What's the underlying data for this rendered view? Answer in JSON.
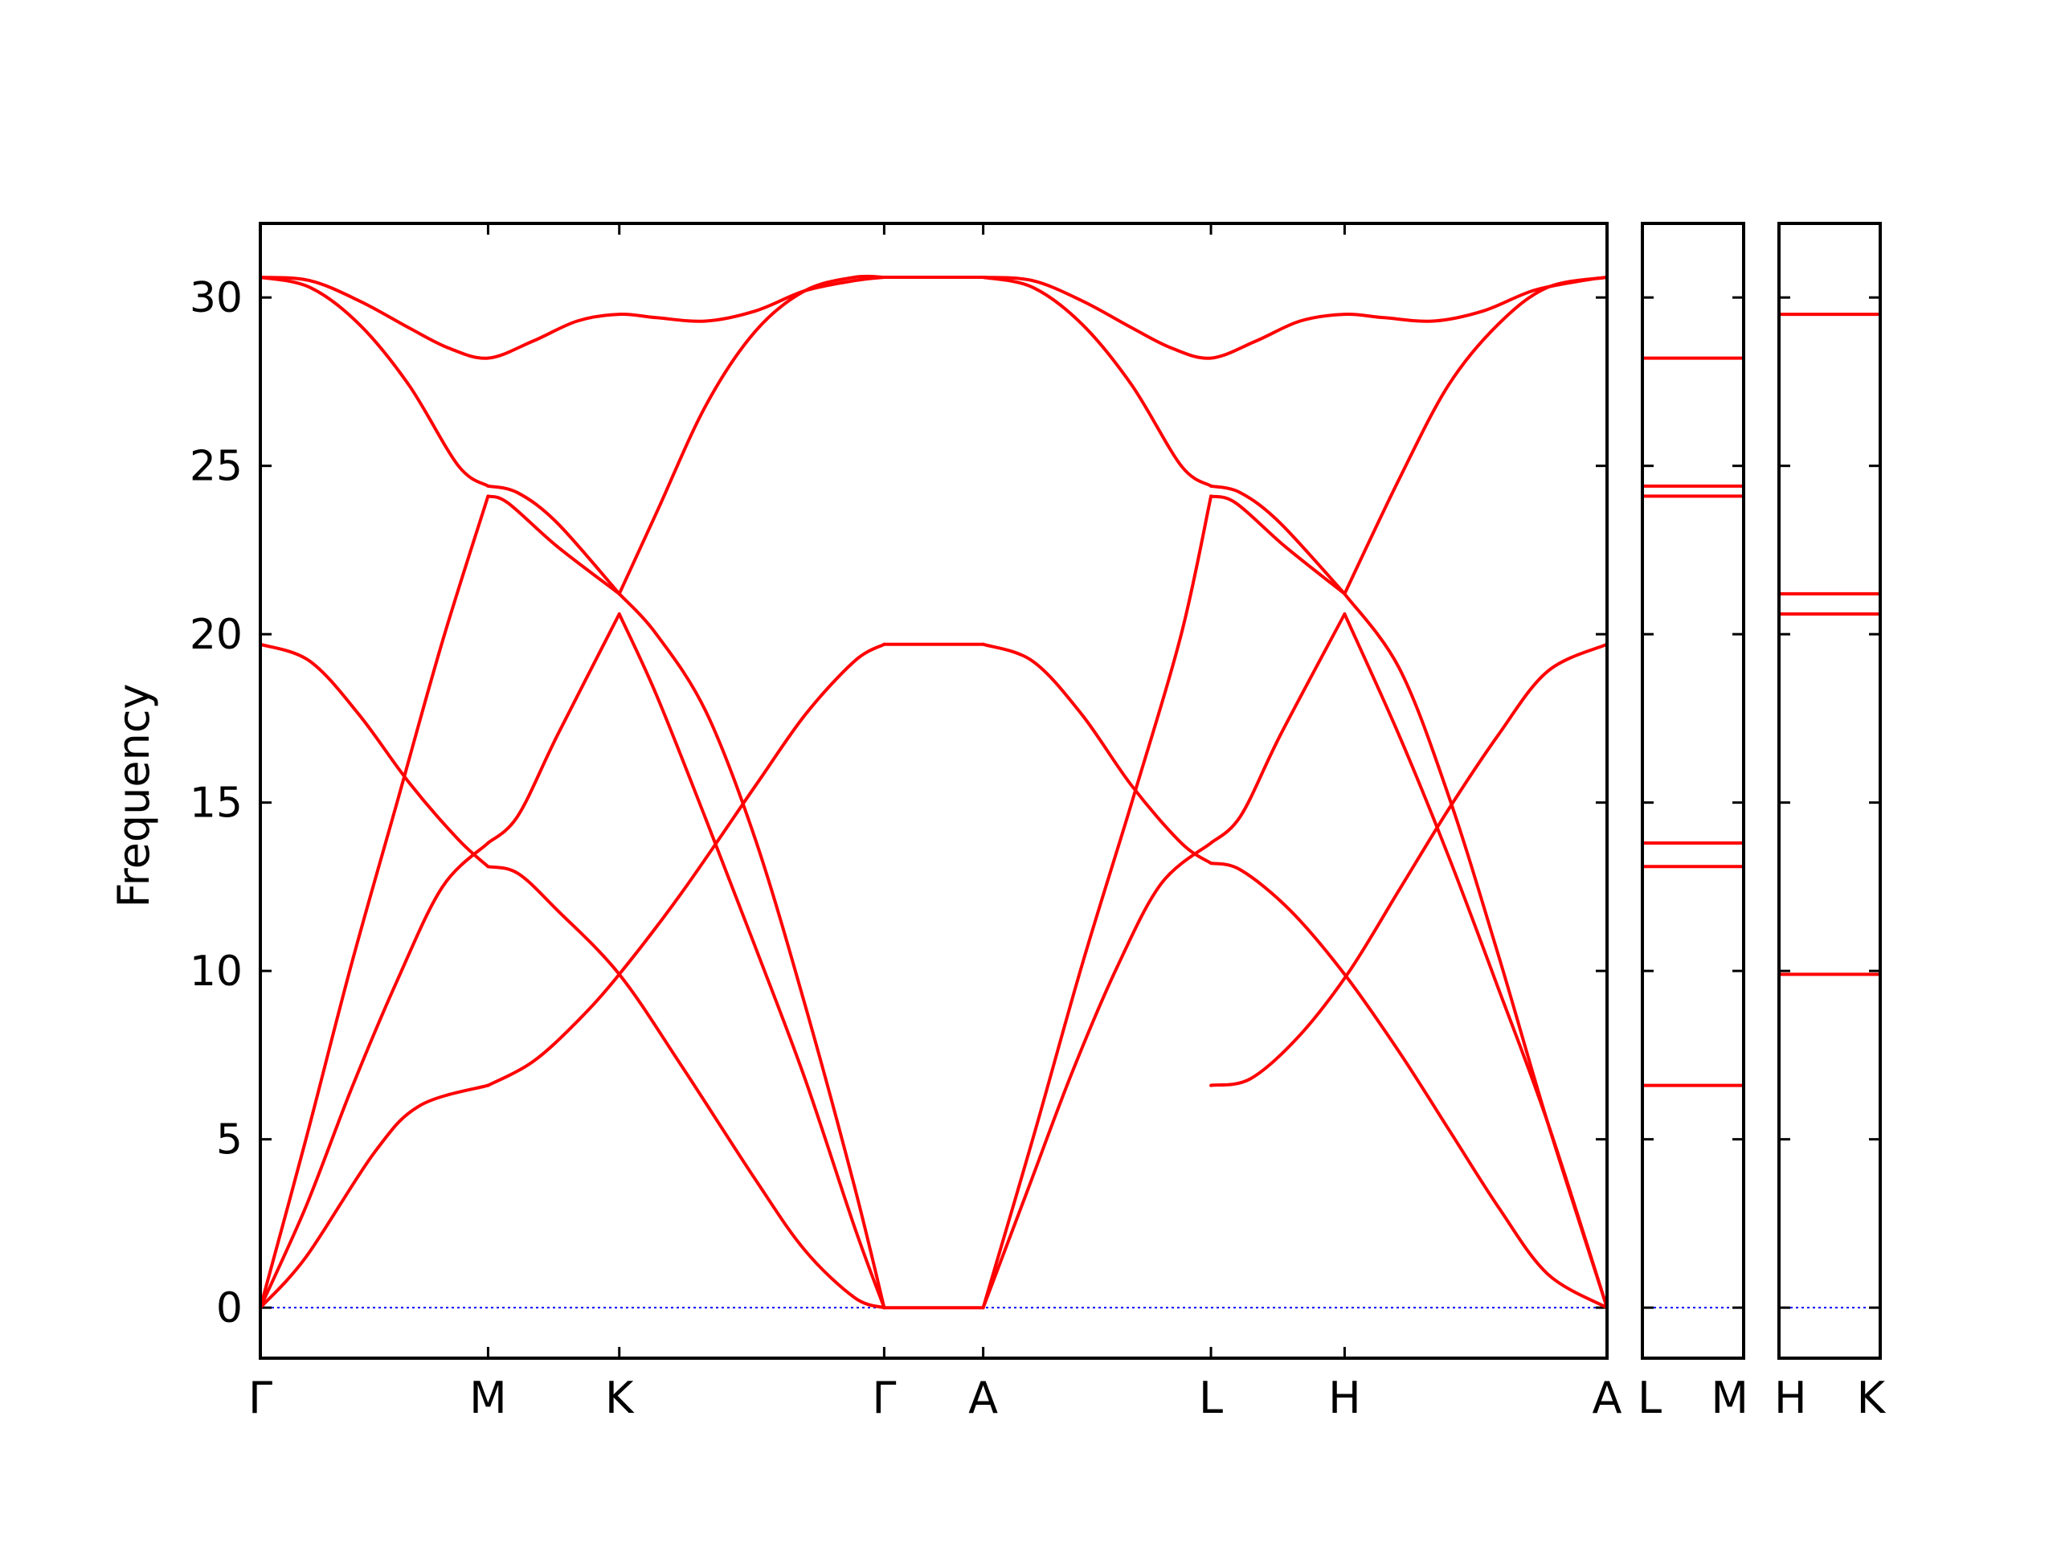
{
  "chart_data": {
    "type": "line",
    "ylabel": "Frequency",
    "ylim": [
      -1.5,
      32.2
    ],
    "yticks": [
      0,
      5,
      10,
      15,
      20,
      25,
      30
    ],
    "band_color": "#ff0000",
    "zero_line_color": "#0000ff",
    "panels": [
      {
        "id": "main",
        "xlim": [
          0,
          2.72
        ],
        "path_labels": [
          {
            "x": 0.0,
            "label": "Γ"
          },
          {
            "x": 0.46,
            "label": "M"
          },
          {
            "x": 0.725,
            "label": "K"
          },
          {
            "x": 1.26,
            "label": "Γ"
          },
          {
            "x": 1.46,
            "label": "A"
          },
          {
            "x": 1.92,
            "label": "L"
          },
          {
            "x": 2.19,
            "label": "H"
          },
          {
            "x": 2.72,
            "label": "A"
          }
        ],
        "bands": [
          {
            "x": [
              0,
              0.092,
              0.23,
              0.322,
              0.46
            ],
            "y": [
              0,
              1.5,
              4.6,
              6.0,
              6.6
            ]
          },
          {
            "x": [
              0.46,
              0.55,
              0.64,
              0.725,
              0.85,
              1.0,
              1.1,
              1.2,
              1.26
            ],
            "y": [
              6.6,
              7.3,
              8.5,
              9.9,
              12.3,
              15.5,
              17.6,
              19.2,
              19.7
            ]
          },
          {
            "x": [
              1.26,
              1.34,
              1.42,
              1.46
            ],
            "y": [
              19.7,
              19.7,
              19.7,
              19.7
            ]
          },
          {
            "x": [
              1.46,
              1.56,
              1.66,
              1.76,
              1.86,
              1.92
            ],
            "y": [
              19.7,
              19.2,
              17.6,
              15.5,
              13.8,
              13.2
            ]
          },
          {
            "x": [
              1.92,
              1.98,
              2.08,
              2.19,
              2.3,
              2.4,
              2.5,
              2.6,
              2.72
            ],
            "y": [
              13.2,
              13.0,
              11.8,
              9.9,
              7.6,
              5.3,
              3.0,
              1.0,
              0
            ]
          },
          {
            "x": [
              0,
              0.092,
              0.184,
              0.276,
              0.368,
              0.46
            ],
            "y": [
              0,
              3.0,
              6.5,
              9.7,
              12.5,
              13.8
            ]
          },
          {
            "x": [
              0.46,
              0.52,
              0.6,
              0.725
            ],
            "y": [
              13.8,
              14.6,
              17.0,
              20.6
            ]
          },
          {
            "x": [
              0.725,
              0.8,
              0.9,
              1.0,
              1.1,
              1.2,
              1.26
            ],
            "y": [
              20.6,
              18.2,
              14.5,
              10.7,
              6.8,
              2.4,
              0
            ]
          },
          {
            "x": [
              1.26,
              1.36,
              1.46
            ],
            "y": [
              0,
              0,
              0
            ]
          },
          {
            "x": [
              1.46,
              1.55,
              1.64,
              1.73,
              1.82,
              1.92
            ],
            "y": [
              0,
              3.5,
              7.0,
              10.1,
              12.6,
              13.8
            ]
          },
          {
            "x": [
              1.92,
              1.98,
              2.06,
              2.19
            ],
            "y": [
              13.8,
              14.6,
              17.0,
              20.6
            ]
          },
          {
            "x": [
              2.19,
              2.3,
              2.4,
              2.5,
              2.6,
              2.72
            ],
            "y": [
              20.6,
              17.0,
              13.4,
              9.5,
              5.5,
              0
            ]
          },
          {
            "x": [
              0,
              0.1,
              0.2,
              0.3,
              0.4,
              0.46
            ],
            "y": [
              19.7,
              19.2,
              17.6,
              15.6,
              13.9,
              13.1
            ]
          },
          {
            "x": [
              0.46,
              0.52,
              0.6,
              0.725,
              0.85,
              1.0,
              1.1,
              1.2,
              1.26
            ],
            "y": [
              13.1,
              12.9,
              11.8,
              9.9,
              7.2,
              3.8,
              1.7,
              0.3,
              0
            ]
          },
          {
            "x": [
              1.92,
              2.0,
              2.1,
              2.2,
              2.3,
              2.4,
              2.5,
              2.6,
              2.72
            ],
            "y": [
              6.6,
              6.8,
              8.1,
              10.0,
              12.4,
              14.8,
              17.0,
              18.9,
              19.7
            ]
          },
          {
            "x": [
              0,
              0.092,
              0.184,
              0.276,
              0.368,
              0.46
            ],
            "y": [
              0,
              5.0,
              10.2,
              15.0,
              19.8,
              24.1
            ]
          },
          {
            "x": [
              0.46,
              0.5,
              0.6,
              0.725
            ],
            "y": [
              24.1,
              23.9,
              22.6,
              21.2
            ]
          },
          {
            "x": [
              0.725,
              0.8,
              0.9,
              1.0,
              1.1,
              1.2,
              1.26
            ],
            "y": [
              21.2,
              20.0,
              17.7,
              13.9,
              9.0,
              3.6,
              0
            ]
          },
          {
            "x": [
              1.46,
              1.56,
              1.66,
              1.76,
              1.86,
              1.92
            ],
            "y": [
              0,
              5.0,
              10.2,
              15.0,
              20.0,
              24.1
            ]
          },
          {
            "x": [
              1.92,
              1.97,
              2.07,
              2.19
            ],
            "y": [
              24.1,
              23.9,
              22.6,
              21.2
            ]
          },
          {
            "x": [
              2.19,
              2.3,
              2.4,
              2.5,
              2.6,
              2.72
            ],
            "y": [
              21.2,
              19.0,
              15.2,
              10.5,
              5.5,
              0
            ]
          },
          {
            "x": [
              0,
              0.1,
              0.2,
              0.3,
              0.4,
              0.46
            ],
            "y": [
              30.6,
              30.3,
              29.2,
              27.4,
              25.0,
              24.4
            ]
          },
          {
            "x": [
              0.46,
              0.52,
              0.6,
              0.725
            ],
            "y": [
              24.4,
              24.2,
              23.3,
              21.2
            ]
          },
          {
            "x": [
              0.725,
              0.8,
              0.9,
              1.0,
              1.1,
              1.2,
              1.26
            ],
            "y": [
              21.2,
              23.6,
              26.8,
              29.0,
              30.2,
              30.6,
              30.6
            ]
          },
          {
            "x": [
              1.26,
              1.36,
              1.46
            ],
            "y": [
              30.6,
              30.6,
              30.6
            ]
          },
          {
            "x": [
              1.46,
              1.56,
              1.66,
              1.76,
              1.86,
              1.92
            ],
            "y": [
              30.6,
              30.3,
              29.2,
              27.4,
              25.0,
              24.4
            ]
          },
          {
            "x": [
              1.92,
              1.98,
              2.06,
              2.19
            ],
            "y": [
              24.4,
              24.2,
              23.3,
              21.2
            ]
          },
          {
            "x": [
              2.19,
              2.3,
              2.4,
              2.5,
              2.6,
              2.72
            ],
            "y": [
              21.2,
              24.6,
              27.4,
              29.2,
              30.3,
              30.6
            ]
          },
          {
            "x": [
              0,
              0.1,
              0.2,
              0.3,
              0.38,
              0.46,
              0.55,
              0.64,
              0.725,
              0.8,
              0.9,
              1.0,
              1.1,
              1.2,
              1.26
            ],
            "y": [
              30.6,
              30.5,
              29.9,
              29.1,
              28.5,
              28.2,
              28.7,
              29.3,
              29.5,
              29.4,
              29.3,
              29.6,
              30.2,
              30.5,
              30.6
            ]
          },
          {
            "x": [
              1.46,
              1.56,
              1.66,
              1.76,
              1.84,
              1.92,
              2.01,
              2.1,
              2.19,
              2.27,
              2.37,
              2.47,
              2.57,
              2.67,
              2.72
            ],
            "y": [
              30.6,
              30.5,
              29.9,
              29.1,
              28.5,
              28.2,
              28.7,
              29.3,
              29.5,
              29.4,
              29.3,
              29.6,
              30.2,
              30.5,
              30.6
            ]
          }
        ]
      },
      {
        "id": "L-M",
        "xlim": [
          0,
          0.2
        ],
        "path_labels": [
          {
            "x": 0.0,
            "label": "L"
          },
          {
            "x": 0.2,
            "label": "M"
          }
        ],
        "levels": [
          6.6,
          13.1,
          13.8,
          24.1,
          24.4,
          28.2
        ]
      },
      {
        "id": "H-K",
        "xlim": [
          0,
          0.2
        ],
        "path_labels": [
          {
            "x": 0.0,
            "label": "H"
          },
          {
            "x": 0.2,
            "label": "K"
          }
        ],
        "levels": [
          9.9,
          20.6,
          21.2,
          29.5
        ]
      }
    ]
  }
}
